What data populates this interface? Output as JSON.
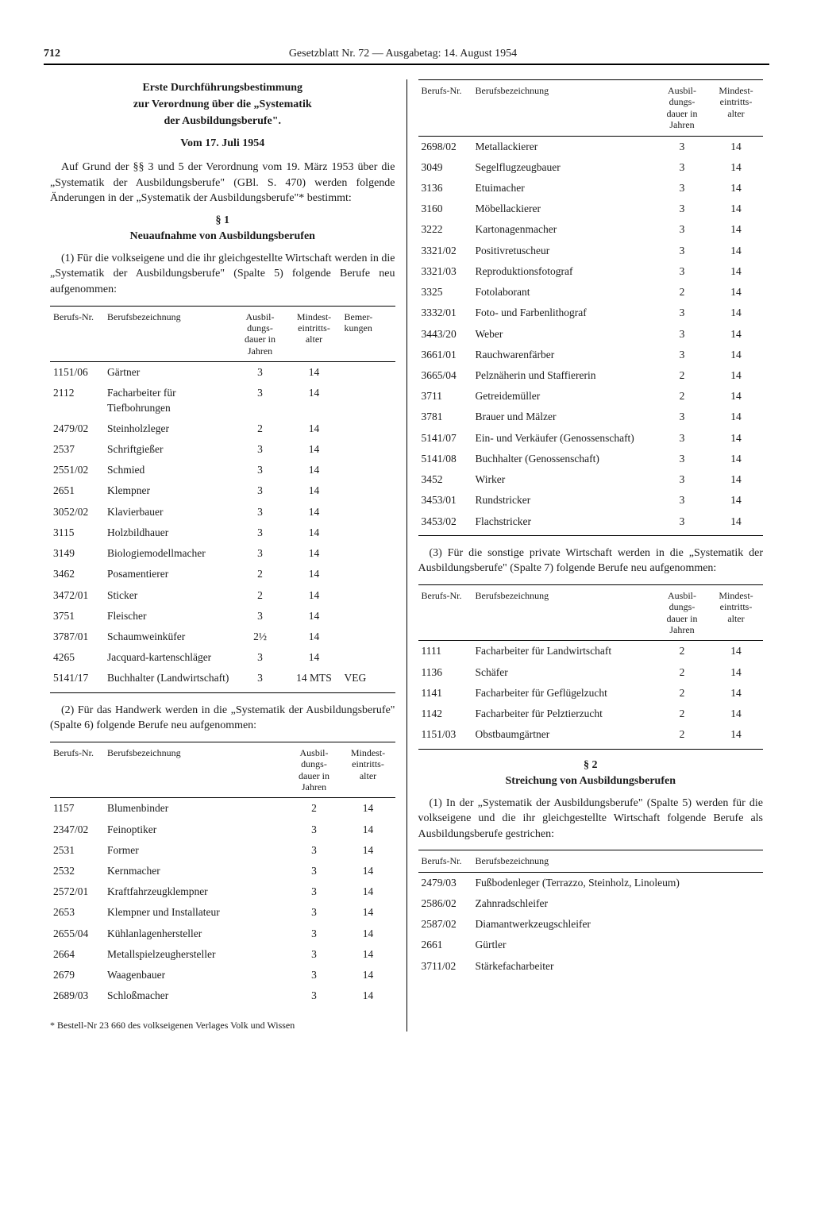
{
  "page_number": "712",
  "header": "Gesetzblatt Nr. 72 — Ausgabetag: 14. August 1954",
  "title": {
    "l1": "Erste Durchführungsbestimmung",
    "l2": "zur Verordnung über die „Systematik",
    "l3": "der Ausbildungsberufe\".",
    "date": "Vom 17. Juli 1954"
  },
  "intro": "Auf Grund der §§ 3 und 5 der Verordnung vom 19. März 1953 über die „Systematik der Ausbildungsberufe\" (GBl. S. 470) werden folgende Änderungen in der „Systematik der Ausbildungsberufe\"* bestimmt:",
  "s1": {
    "num": "§ 1",
    "title": "Neuaufnahme von Ausbildungsberufen"
  },
  "p1": "(1) Für die volkseigene und die ihr gleichgestellte Wirtschaft werden in die „Systematik der Ausbildungsberufe\" (Spalte 5) folgende Berufe neu aufgenommen:",
  "th": {
    "nr": "Berufs-Nr.",
    "bez": "Berufsbezeichnung",
    "dauer": "Ausbil-\ndungs-\ndauer\nin Jahren",
    "alter": "Mindest-\neintritts-\nalter",
    "bem": "Bemer-\nkungen"
  },
  "t1": [
    [
      "1151/06",
      "Gärtner",
      "3",
      "14",
      ""
    ],
    [
      "2112",
      "Facharbeiter für Tiefbohrungen",
      "3",
      "14",
      ""
    ],
    [
      "2479/02",
      "Steinholzleger",
      "2",
      "14",
      ""
    ],
    [
      "2537",
      "Schriftgießer",
      "3",
      "14",
      ""
    ],
    [
      "2551/02",
      "Schmied",
      "3",
      "14",
      ""
    ],
    [
      "2651",
      "Klempner",
      "3",
      "14",
      ""
    ],
    [
      "3052/02",
      "Klavierbauer",
      "3",
      "14",
      ""
    ],
    [
      "3115",
      "Holzbildhauer",
      "3",
      "14",
      ""
    ],
    [
      "3149",
      "Biologiemodellmacher",
      "3",
      "14",
      ""
    ],
    [
      "3462",
      "Posamentierer",
      "2",
      "14",
      ""
    ],
    [
      "3472/01",
      "Sticker",
      "2",
      "14",
      ""
    ],
    [
      "3751",
      "Fleischer",
      "3",
      "14",
      ""
    ],
    [
      "3787/01",
      "Schaumweinküfer",
      "2½",
      "14",
      ""
    ],
    [
      "4265",
      "Jacquard-kartenschläger",
      "3",
      "14",
      ""
    ],
    [
      "5141/17",
      "Buchhalter (Landwirtschaft)",
      "3",
      "14 MTS",
      "VEG"
    ]
  ],
  "p2": "(2) Für das Handwerk werden in die „Systematik der Ausbildungsberufe\" (Spalte 6) folgende Berufe neu aufgenommen:",
  "t2": [
    [
      "1157",
      "Blumenbinder",
      "2",
      "14"
    ],
    [
      "2347/02",
      "Feinoptiker",
      "3",
      "14"
    ],
    [
      "2531",
      "Former",
      "3",
      "14"
    ],
    [
      "2532",
      "Kernmacher",
      "3",
      "14"
    ],
    [
      "2572/01",
      "Kraftfahrzeugklempner",
      "3",
      "14"
    ],
    [
      "2653",
      "Klempner und Installateur",
      "3",
      "14"
    ],
    [
      "2655/04",
      "Kühlanlagenhersteller",
      "3",
      "14"
    ],
    [
      "2664",
      "Metallspielzeughersteller",
      "3",
      "14"
    ],
    [
      "2679",
      "Waagenbauer",
      "3",
      "14"
    ],
    [
      "2689/03",
      "Schloßmacher",
      "3",
      "14"
    ]
  ],
  "footnote": "* Bestell-Nr 23 660 des volkseigenen Verlages Volk und Wissen",
  "t2b": [
    [
      "2698/02",
      "Metallackierer",
      "3",
      "14"
    ],
    [
      "3049",
      "Segelflugzeugbauer",
      "3",
      "14"
    ],
    [
      "3136",
      "Etuimacher",
      "3",
      "14"
    ],
    [
      "3160",
      "Möbellackierer",
      "3",
      "14"
    ],
    [
      "3222",
      "Kartonagenmacher",
      "3",
      "14"
    ],
    [
      "3321/02",
      "Positivretuscheur",
      "3",
      "14"
    ],
    [
      "3321/03",
      "Reproduktionsfotograf",
      "3",
      "14"
    ],
    [
      "3325",
      "Fotolaborant",
      "2",
      "14"
    ],
    [
      "3332/01",
      "Foto- und Farbenlithograf",
      "3",
      "14"
    ],
    [
      "3443/20",
      "Weber",
      "3",
      "14"
    ],
    [
      "3661/01",
      "Rauchwarenfärber",
      "3",
      "14"
    ],
    [
      "3665/04",
      "Pelznäherin und Staffiererin",
      "2",
      "14"
    ],
    [
      "3711",
      "Getreidemüller",
      "2",
      "14"
    ],
    [
      "3781",
      "Brauer und Mälzer",
      "3",
      "14"
    ],
    [
      "5141/07",
      "Ein- und Verkäufer (Genossenschaft)",
      "3",
      "14"
    ],
    [
      "5141/08",
      "Buchhalter (Genossenschaft)",
      "3",
      "14"
    ],
    [
      "3452",
      "Wirker",
      "3",
      "14"
    ],
    [
      "3453/01",
      "Rundstricker",
      "3",
      "14"
    ],
    [
      "3453/02",
      "Flachstricker",
      "3",
      "14"
    ]
  ],
  "p3": "(3) Für die sonstige private Wirtschaft werden in die „Systematik der Ausbildungsberufe\" (Spalte 7) folgende Berufe neu aufgenommen:",
  "t3": [
    [
      "1111",
      "Facharbeiter für Landwirtschaft",
      "2",
      "14"
    ],
    [
      "1136",
      "Schäfer",
      "2",
      "14"
    ],
    [
      "1141",
      "Facharbeiter für Geflügelzucht",
      "2",
      "14"
    ],
    [
      "1142",
      "Facharbeiter für Pelztierzucht",
      "2",
      "14"
    ],
    [
      "1151/03",
      "Obstbaumgärtner",
      "2",
      "14"
    ]
  ],
  "s2": {
    "num": "§ 2",
    "title": "Streichung von Ausbildungsberufen"
  },
  "p4": "(1) In der „Systematik der Ausbildungsberufe\" (Spalte 5) werden für die volkseigene und die ihr gleichgestellte Wirtschaft folgende Berufe als Ausbildungsberufe gestrichen:",
  "t4": [
    [
      "2479/03",
      "Fußbodenleger (Terrazzo, Steinholz, Linoleum)"
    ],
    [
      "2586/02",
      "Zahnradschleifer"
    ],
    [
      "2587/02",
      "Diamantwerkzeugschleifer"
    ],
    [
      "2661",
      "Gürtler"
    ],
    [
      "3711/02",
      "Stärkefacharbeiter"
    ]
  ]
}
